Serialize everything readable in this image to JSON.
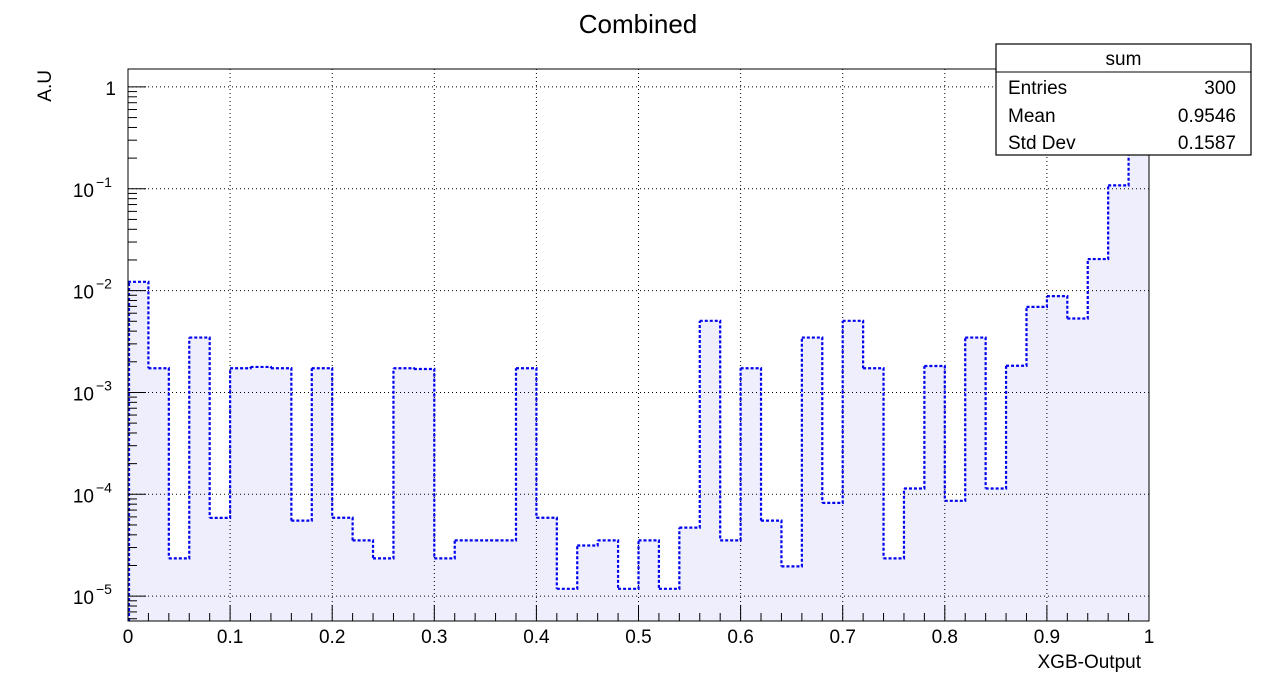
{
  "chart_data": {
    "type": "histogram",
    "title": "Combined",
    "xlabel": "XGB-Output",
    "ylabel": "A.U",
    "xlim": [
      0,
      1
    ],
    "ylim": [
      5.7e-06,
      1.5
    ],
    "yscale": "log",
    "grid": true,
    "bin_edges": [
      0,
      0.02,
      0.04,
      0.06,
      0.08,
      0.1,
      0.12,
      0.14,
      0.16,
      0.18,
      0.2,
      0.22,
      0.24,
      0.26,
      0.28,
      0.3,
      0.32,
      0.34,
      0.36,
      0.38,
      0.4,
      0.42,
      0.44,
      0.46,
      0.48,
      0.5,
      0.52,
      0.54,
      0.56,
      0.58,
      0.6,
      0.62,
      0.64,
      0.66,
      0.68,
      0.7,
      0.72,
      0.74,
      0.76,
      0.78,
      0.8,
      0.82,
      0.84,
      0.86,
      0.88,
      0.9,
      0.92,
      0.94,
      0.96,
      0.98,
      1.0
    ],
    "values": [
      0.0122,
      0.00173,
      2.35e-05,
      0.00346,
      5.87e-05,
      0.00173,
      0.00178,
      0.00173,
      5.51e-05,
      0.00173,
      5.88e-05,
      3.53e-05,
      2.35e-05,
      0.00173,
      0.0017,
      2.35e-05,
      3.53e-05,
      3.53e-05,
      3.53e-05,
      0.00173,
      5.88e-05,
      1.18e-05,
      3.14e-05,
      3.53e-05,
      1.18e-05,
      3.53e-05,
      1.18e-05,
      4.71e-05,
      0.00505,
      3.53e-05,
      0.00173,
      5.51e-05,
      1.96e-05,
      0.00346,
      8.24e-05,
      0.00505,
      0.00173,
      2.35e-05,
      0.000114,
      0.00182,
      8.63e-05,
      0.00346,
      0.000114,
      0.00183,
      0.00692,
      0.00883,
      0.00532,
      0.0204,
      0.108,
      0.85
    ],
    "series_color": "#0000ee",
    "fill_color": "#eeeefc",
    "legend_position": "top-right",
    "xticks": [
      "0",
      "0.1",
      "0.2",
      "0.3",
      "0.4",
      "0.5",
      "0.6",
      "0.7",
      "0.8",
      "0.9",
      "1"
    ],
    "yticks": [
      {
        "base": "10",
        "exp": "−5"
      },
      {
        "base": "10",
        "exp": "−4"
      },
      {
        "base": "10",
        "exp": "−3"
      },
      {
        "base": "10",
        "exp": "−2"
      },
      {
        "base": "10",
        "exp": "−1"
      },
      {
        "base": "1",
        "exp": ""
      }
    ],
    "stats": {
      "name": "sum",
      "rows": [
        {
          "label": "Entries",
          "value": "300"
        },
        {
          "label": "Mean",
          "value": "0.9546"
        },
        {
          "label": "Std Dev",
          "value": "0.1587"
        }
      ]
    }
  }
}
